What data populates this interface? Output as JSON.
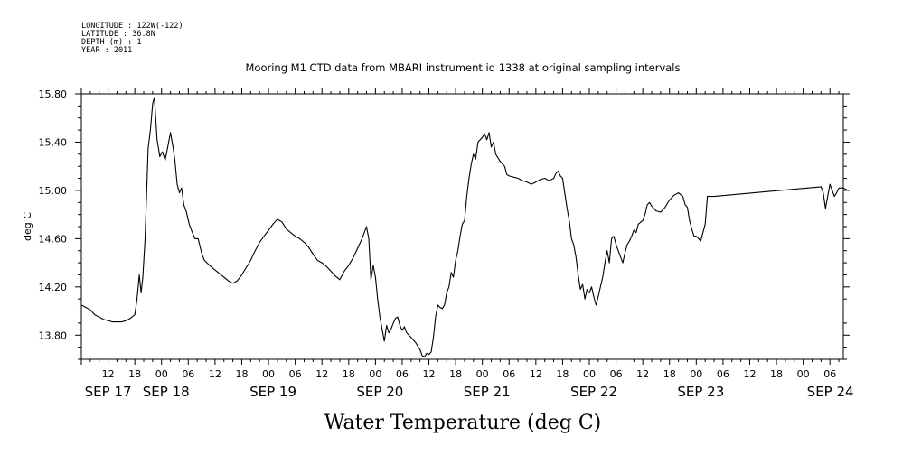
{
  "header": {
    "meta_lines": [
      "LONGITUDE : 122W(-122)",
      "LATITUDE : 36.8N",
      "DEPTH (m) : 1",
      "YEAR : 2011"
    ]
  },
  "chart_data": {
    "type": "line",
    "title": "Mooring M1 CTD data from MBARI instrument id 1338 at original sampling intervals",
    "xlabel": "Water Temperature (deg C)",
    "ylabel": "deg C",
    "ylim": [
      13.6,
      15.8
    ],
    "yticks": [
      "13.80",
      "14.20",
      "14.60",
      "15.00",
      "15.40",
      "15.80"
    ],
    "xlim": [
      6,
      177
    ],
    "x_units": "hours since SEP 17 00:00, 2011",
    "hour_tick_labels": [
      "12",
      "18",
      "00",
      "06",
      "12",
      "18",
      "00",
      "06",
      "12",
      "18",
      "00",
      "06",
      "12",
      "18",
      "00",
      "06",
      "12",
      "18",
      "00",
      "06",
      "12",
      "18",
      "00",
      "06",
      "12",
      "18",
      "00",
      "06"
    ],
    "day_labels": [
      "SEP 17",
      "SEP 18",
      "SEP 19",
      "SEP 20",
      "SEP 21",
      "SEP 22",
      "SEP 23",
      "SEP 24"
    ],
    "grid": false,
    "series": [
      {
        "name": "",
        "color": "#000000",
        "points": [
          [
            6,
            14.05
          ],
          [
            7,
            14.03
          ],
          [
            8,
            14.01
          ],
          [
            9,
            13.97
          ],
          [
            10,
            13.95
          ],
          [
            11,
            13.93
          ],
          [
            12,
            13.92
          ],
          [
            13,
            13.91
          ],
          [
            14,
            13.91
          ],
          [
            15,
            13.91
          ],
          [
            16,
            13.92
          ],
          [
            17,
            13.94
          ],
          [
            18,
            13.97
          ],
          [
            18.5,
            14.1
          ],
          [
            19,
            14.3
          ],
          [
            19.4,
            14.15
          ],
          [
            19.8,
            14.28
          ],
          [
            20.3,
            14.6
          ],
          [
            21,
            15.35
          ],
          [
            21.5,
            15.5
          ],
          [
            22,
            15.72
          ],
          [
            22.4,
            15.77
          ],
          [
            23,
            15.42
          ],
          [
            23.6,
            15.28
          ],
          [
            24.2,
            15.32
          ],
          [
            24.8,
            15.25
          ],
          [
            25.5,
            15.38
          ],
          [
            26,
            15.48
          ],
          [
            26.6,
            15.35
          ],
          [
            27,
            15.25
          ],
          [
            27.5,
            15.05
          ],
          [
            28,
            14.98
          ],
          [
            28.5,
            15.02
          ],
          [
            29,
            14.88
          ],
          [
            29.6,
            14.82
          ],
          [
            30.2,
            14.72
          ],
          [
            30.8,
            14.66
          ],
          [
            31.5,
            14.6
          ],
          [
            32.2,
            14.6
          ],
          [
            33,
            14.48
          ],
          [
            33.6,
            14.42
          ],
          [
            34.2,
            14.4
          ],
          [
            35,
            14.37
          ],
          [
            36,
            14.34
          ],
          [
            37,
            14.31
          ],
          [
            38,
            14.28
          ],
          [
            39,
            14.25
          ],
          [
            40,
            14.23
          ],
          [
            41,
            14.25
          ],
          [
            42,
            14.3
          ],
          [
            43,
            14.36
          ],
          [
            44,
            14.42
          ],
          [
            45,
            14.5
          ],
          [
            46,
            14.57
          ],
          [
            47,
            14.62
          ],
          [
            48,
            14.67
          ],
          [
            49,
            14.72
          ],
          [
            50,
            14.76
          ],
          [
            51,
            14.74
          ],
          [
            52,
            14.68
          ],
          [
            53,
            14.65
          ],
          [
            54,
            14.62
          ],
          [
            55,
            14.6
          ],
          [
            56,
            14.57
          ],
          [
            57,
            14.53
          ],
          [
            58,
            14.47
          ],
          [
            59,
            14.42
          ],
          [
            60,
            14.4
          ],
          [
            61,
            14.37
          ],
          [
            62,
            14.33
          ],
          [
            63,
            14.29
          ],
          [
            64,
            14.26
          ],
          [
            65,
            14.33
          ],
          [
            66,
            14.38
          ],
          [
            67,
            14.44
          ],
          [
            68,
            14.52
          ],
          [
            69,
            14.6
          ],
          [
            69.5,
            14.65
          ],
          [
            70,
            14.7
          ],
          [
            70.5,
            14.6
          ],
          [
            71,
            14.26
          ],
          [
            71.5,
            14.38
          ],
          [
            72,
            14.28
          ],
          [
            72.5,
            14.1
          ],
          [
            73,
            13.95
          ],
          [
            73.5,
            13.85
          ],
          [
            74,
            13.75
          ],
          [
            74.5,
            13.88
          ],
          [
            75,
            13.82
          ],
          [
            75.5,
            13.85
          ],
          [
            76,
            13.9
          ],
          [
            76.5,
            13.94
          ],
          [
            77,
            13.95
          ],
          [
            77.5,
            13.88
          ],
          [
            78,
            13.84
          ],
          [
            78.5,
            13.87
          ],
          [
            79,
            13.82
          ],
          [
            80,
            13.78
          ],
          [
            81,
            13.74
          ],
          [
            82,
            13.68
          ],
          [
            82.5,
            13.63
          ],
          [
            83,
            13.62
          ],
          [
            83.5,
            13.65
          ],
          [
            84,
            13.64
          ],
          [
            84.5,
            13.66
          ],
          [
            85,
            13.78
          ],
          [
            85.5,
            13.95
          ],
          [
            86,
            14.05
          ],
          [
            86.5,
            14.03
          ],
          [
            87,
            14.02
          ],
          [
            87.5,
            14.05
          ],
          [
            88,
            14.15
          ],
          [
            88.5,
            14.2
          ],
          [
            89,
            14.32
          ],
          [
            89.5,
            14.28
          ],
          [
            90,
            14.42
          ],
          [
            90.5,
            14.5
          ],
          [
            91,
            14.62
          ],
          [
            91.5,
            14.72
          ],
          [
            92,
            14.75
          ],
          [
            92.5,
            14.95
          ],
          [
            93,
            15.1
          ],
          [
            93.5,
            15.22
          ],
          [
            94,
            15.3
          ],
          [
            94.5,
            15.26
          ],
          [
            95,
            15.4
          ],
          [
            96,
            15.44
          ],
          [
            96.5,
            15.47
          ],
          [
            97,
            15.42
          ],
          [
            97.5,
            15.48
          ],
          [
            98,
            15.36
          ],
          [
            98.5,
            15.4
          ],
          [
            99,
            15.3
          ],
          [
            100,
            15.24
          ],
          [
            101,
            15.2
          ],
          [
            101.5,
            15.13
          ],
          [
            102,
            15.12
          ],
          [
            103,
            15.11
          ],
          [
            104,
            15.1
          ],
          [
            105,
            15.08
          ],
          [
            106,
            15.07
          ],
          [
            107,
            15.05
          ],
          [
            108,
            15.07
          ],
          [
            109,
            15.09
          ],
          [
            110,
            15.1
          ],
          [
            111,
            15.08
          ],
          [
            112,
            15.1
          ],
          [
            112.5,
            15.14
          ],
          [
            113,
            15.16
          ],
          [
            113.5,
            15.12
          ],
          [
            114,
            15.1
          ],
          [
            115,
            14.85
          ],
          [
            115.5,
            14.75
          ],
          [
            116,
            14.6
          ],
          [
            116.5,
            14.55
          ],
          [
            117,
            14.45
          ],
          [
            117.5,
            14.3
          ],
          [
            118,
            14.18
          ],
          [
            118.5,
            14.22
          ],
          [
            119,
            14.1
          ],
          [
            119.5,
            14.18
          ],
          [
            120,
            14.15
          ],
          [
            120.5,
            14.2
          ],
          [
            121,
            14.12
          ],
          [
            121.5,
            14.05
          ],
          [
            122,
            14.12
          ],
          [
            122.5,
            14.2
          ],
          [
            123,
            14.28
          ],
          [
            123.5,
            14.4
          ],
          [
            124,
            14.5
          ],
          [
            124.5,
            14.4
          ],
          [
            125,
            14.6
          ],
          [
            125.5,
            14.62
          ],
          [
            126,
            14.55
          ],
          [
            126.5,
            14.5
          ],
          [
            127,
            14.45
          ],
          [
            127.5,
            14.4
          ],
          [
            128,
            14.48
          ],
          [
            128.5,
            14.55
          ],
          [
            129,
            14.58
          ],
          [
            129.5,
            14.62
          ],
          [
            130,
            14.67
          ],
          [
            130.5,
            14.65
          ],
          [
            131,
            14.72
          ],
          [
            132,
            14.75
          ],
          [
            132.5,
            14.8
          ],
          [
            133,
            14.88
          ],
          [
            133.5,
            14.9
          ],
          [
            134,
            14.87
          ],
          [
            135,
            14.83
          ],
          [
            136,
            14.82
          ],
          [
            137,
            14.86
          ],
          [
            138,
            14.92
          ],
          [
            139,
            14.96
          ],
          [
            140,
            14.98
          ],
          [
            141,
            14.95
          ],
          [
            141.5,
            14.88
          ],
          [
            142,
            14.86
          ],
          [
            142.5,
            14.75
          ],
          [
            143,
            14.68
          ],
          [
            143.5,
            14.62
          ],
          [
            144,
            14.62
          ],
          [
            144.5,
            14.6
          ],
          [
            145,
            14.58
          ],
          [
            145.5,
            14.65
          ],
          [
            146,
            14.72
          ],
          [
            146.5,
            14.95
          ],
          [
            147,
            14.95
          ],
          [
            148,
            14.95
          ],
          [
            160,
            14.99
          ],
          [
            172,
            15.03
          ],
          [
            172.5,
            14.98
          ],
          [
            173,
            14.85
          ],
          [
            173.5,
            14.95
          ],
          [
            174,
            15.05
          ],
          [
            174.5,
            15.0
          ],
          [
            175,
            14.95
          ],
          [
            175.5,
            14.98
          ],
          [
            176,
            15.02
          ],
          [
            177,
            15.02
          ],
          [
            178,
            15.0
          ]
        ]
      }
    ]
  }
}
